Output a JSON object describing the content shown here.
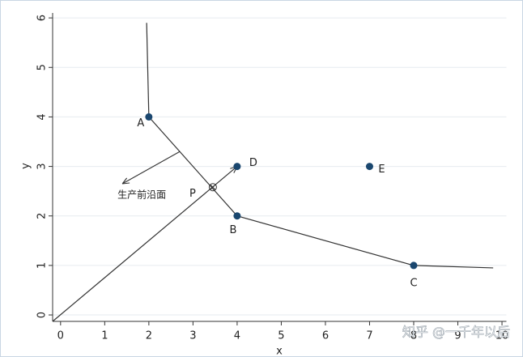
{
  "chart_data": {
    "type": "scatter",
    "x_label": "x",
    "y_label": "y",
    "xlim": [
      -0.18,
      10.1
    ],
    "ylim": [
      -0.13,
      6.1
    ],
    "xticks": [
      0,
      1,
      2,
      3,
      4,
      5,
      6,
      7,
      8,
      9,
      10
    ],
    "yticks": [
      0,
      1,
      2,
      3,
      4,
      5,
      6
    ],
    "grid": true,
    "points": {
      "x": [
        2,
        4,
        8,
        4,
        7
      ],
      "y": [
        4,
        2,
        1,
        3,
        3
      ],
      "labels": [
        "A",
        "B",
        "C",
        "D",
        "E"
      ],
      "color": "#1a476f"
    },
    "frontier": {
      "x": [
        1.95,
        2,
        4,
        8,
        9.8
      ],
      "y": [
        5.9,
        4,
        2,
        1,
        0.95
      ],
      "color": "#333333"
    },
    "ray": {
      "x": [
        -0.18,
        4
      ],
      "y": [
        -0.13,
        3
      ],
      "color": "#333333"
    },
    "p_point": {
      "x": 3.45,
      "y": 2.58,
      "label": "P"
    },
    "arrow": {
      "x": [
        2.7,
        1.4
      ],
      "y": [
        3.3,
        2.65
      ],
      "label": "生产前沿面"
    },
    "watermark": "知乎 @一千年以后"
  }
}
